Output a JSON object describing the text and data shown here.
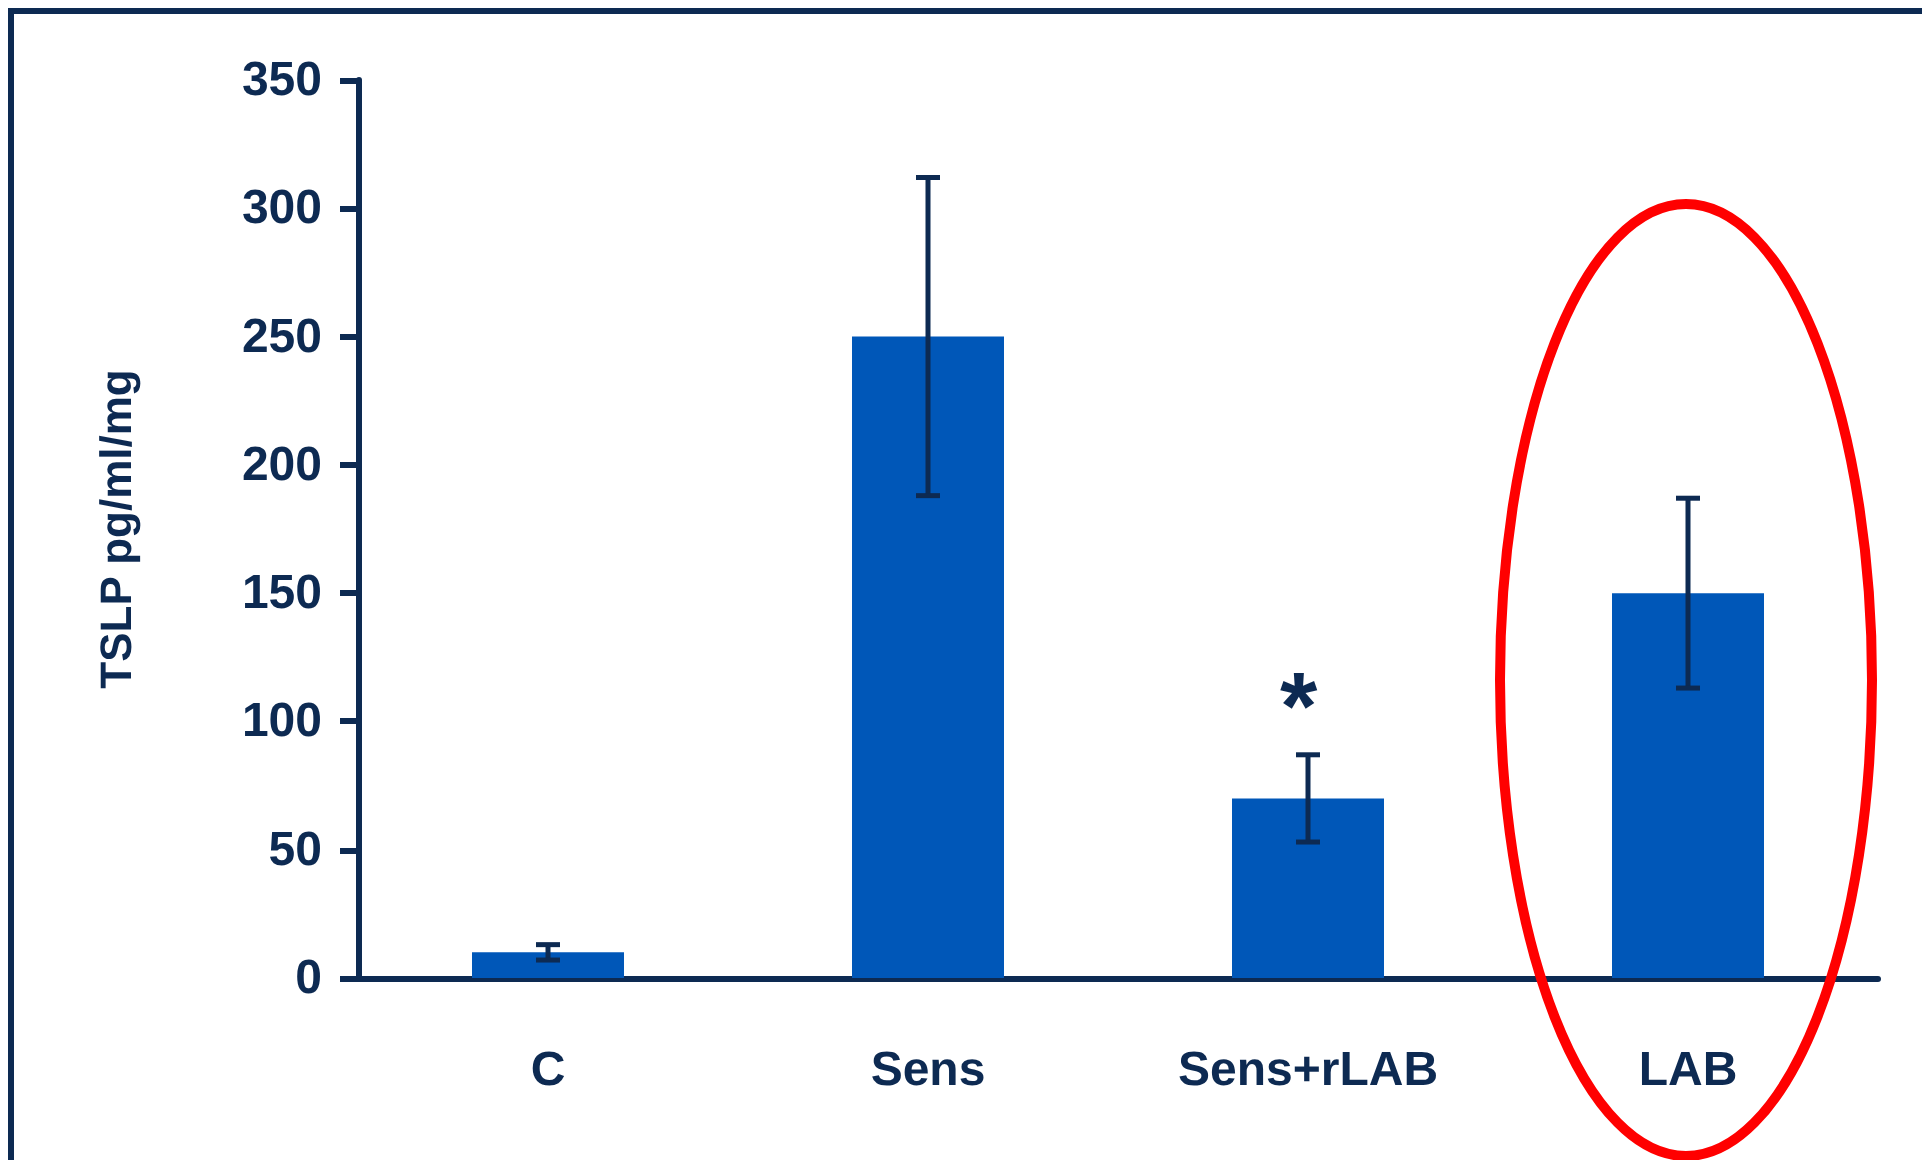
{
  "chart_data": {
    "type": "bar",
    "ylabel": "TSLP pg/ml/mg",
    "categories": [
      "C",
      "Sens",
      "Sens+rLAB",
      "LAB"
    ],
    "values": [
      10,
      250,
      70,
      150
    ],
    "errors": [
      3,
      62,
      17,
      37
    ],
    "color": "#0057b8",
    "ylim": [
      0,
      350
    ],
    "yticks": [
      0,
      50,
      100,
      150,
      200,
      250,
      300,
      350
    ],
    "grid": false,
    "annotations": [
      "*"
    ]
  }
}
